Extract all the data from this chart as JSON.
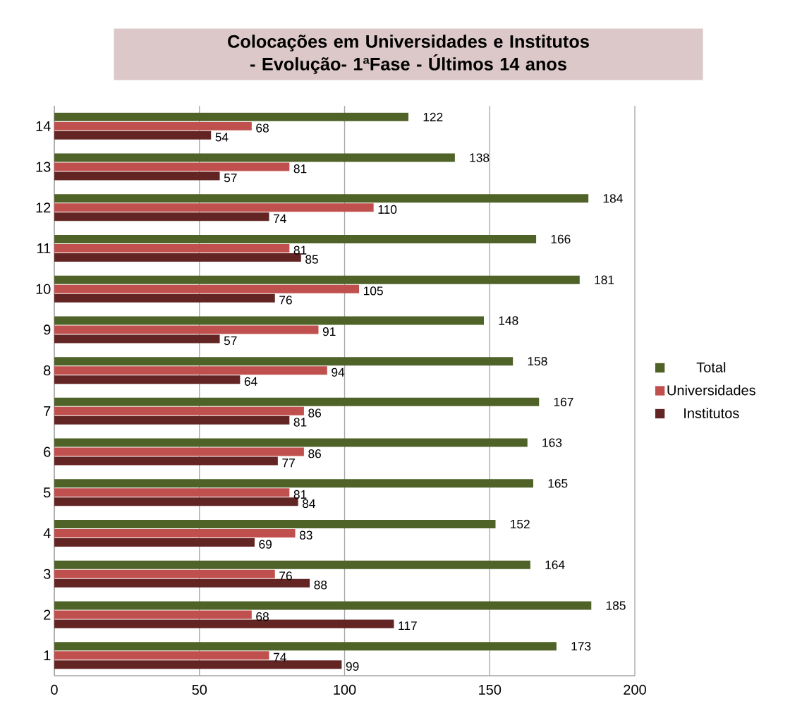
{
  "chart_data": {
    "type": "bar",
    "orientation": "horizontal",
    "title": "Colocações em Universidades e Institutos - Evolução-  1ªFase - Últimos 14 anos",
    "categories": [
      "14",
      "13",
      "12",
      "11",
      "10",
      "9",
      "8",
      "7",
      "6",
      "5",
      "4",
      "3",
      "2",
      "1"
    ],
    "series": [
      {
        "name": "Total",
        "color": "#4f6228",
        "values": [
          122,
          138,
          184,
          166,
          181,
          148,
          158,
          167,
          163,
          165,
          152,
          164,
          185,
          173
        ]
      },
      {
        "name": "Universidades",
        "color": "#c0504d",
        "values": [
          68,
          81,
          110,
          81,
          105,
          91,
          94,
          86,
          86,
          81,
          83,
          76,
          68,
          74
        ]
      },
      {
        "name": "Institutos",
        "color": "#632523",
        "values": [
          54,
          57,
          74,
          85,
          76,
          57,
          64,
          81,
          77,
          84,
          69,
          88,
          117,
          99
        ]
      }
    ],
    "xlim": [
      0,
      200
    ],
    "xticks": [
      0,
      50,
      100,
      150,
      200
    ],
    "grid": "x",
    "legend": "right",
    "data_labels": true
  }
}
